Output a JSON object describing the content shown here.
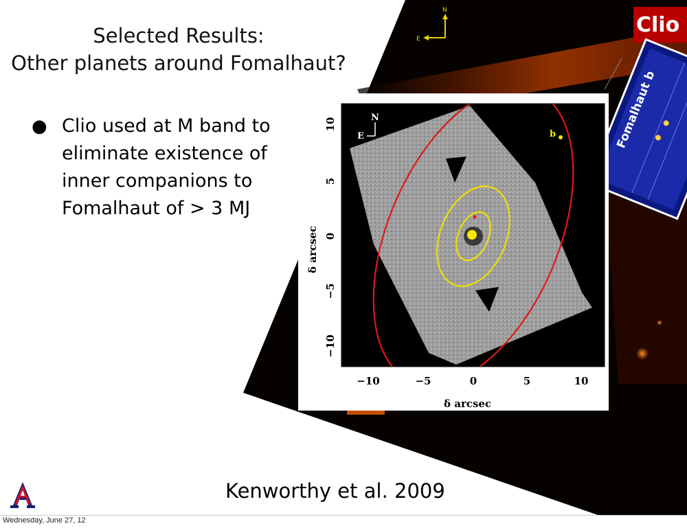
{
  "slide": {
    "title_line1": "Selected Results:",
    "title_line2": "Other planets around Fomalhaut?",
    "bullet": "Clio used at M band to eliminate existence of inner companions to Fomalhaut of > 3 MJ",
    "citation": "Kenworthy et al. 2009"
  },
  "background_image": {
    "badge": "Clio",
    "compass_north": "N",
    "compass_east": "E",
    "inset_label": "Fomalhaut b"
  },
  "plot": {
    "compass_north": "N",
    "compass_east": "E",
    "planet_label": "b",
    "xlabel": "δ arcsec",
    "ylabel": "δ arcsec",
    "x_ticks": [
      "−10",
      "−5",
      "0",
      "5",
      "10"
    ],
    "y_ticks": [
      "10",
      "5",
      "0",
      "−5",
      "−10"
    ],
    "colors": {
      "outer_orbit": "#e01818",
      "inner_orbits": "#f0e000",
      "star": "#f8e800"
    }
  },
  "logo": {
    "name": "University of Arizona A logo"
  },
  "footer": {
    "date": "Wednesday, June 27, 12"
  }
}
